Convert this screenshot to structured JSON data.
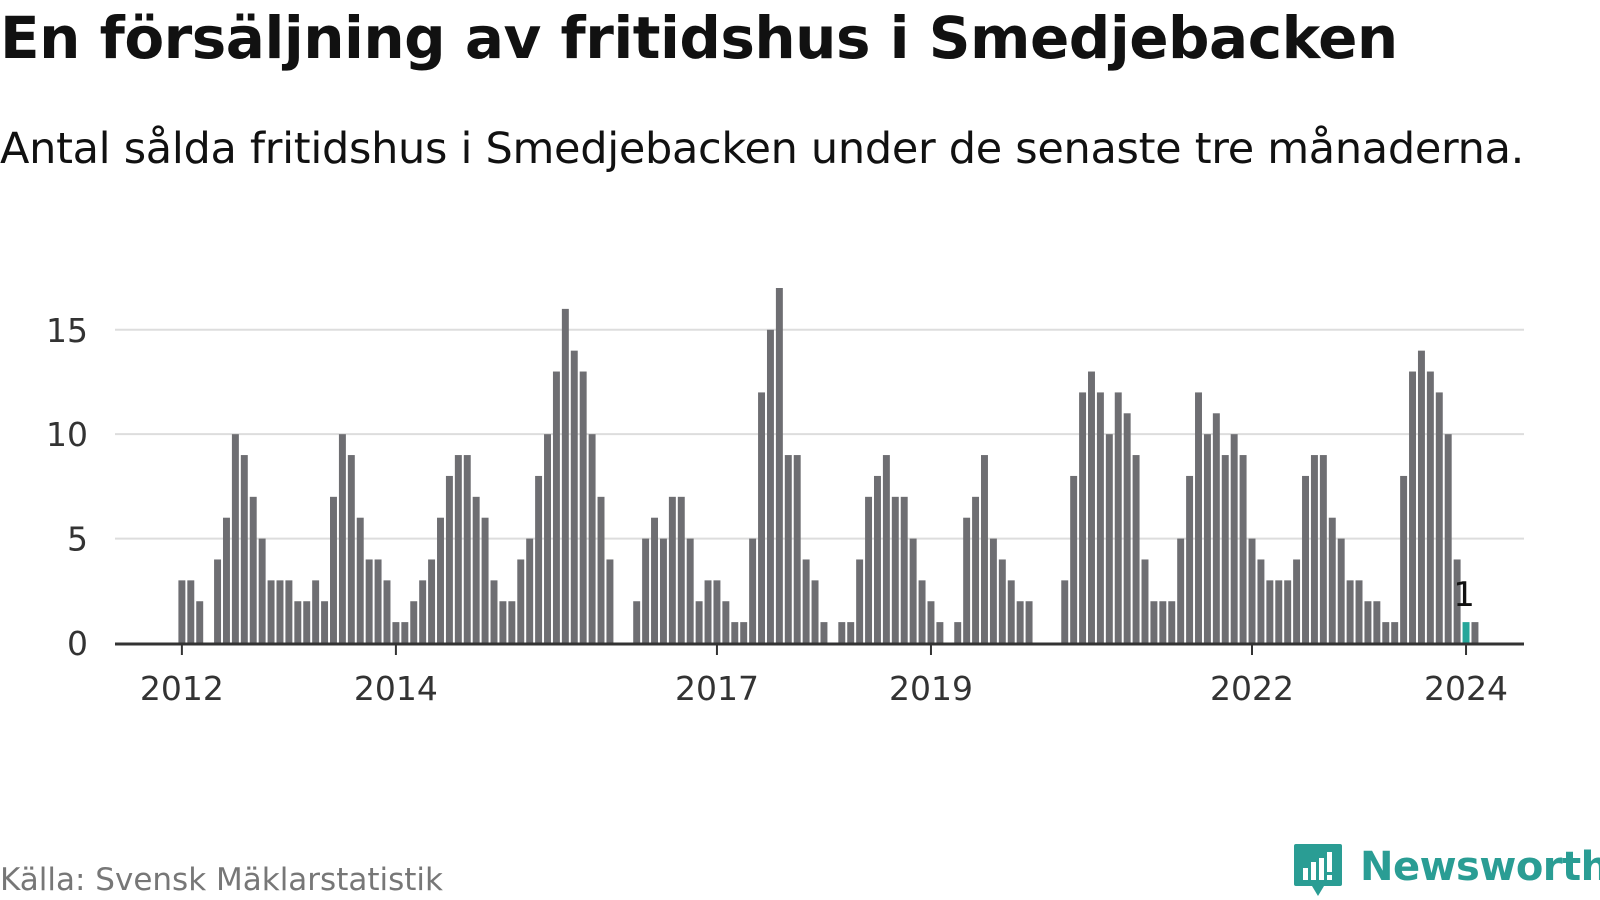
{
  "header": {
    "title": "En försäljning av fritidshus i Smedjebacken",
    "subtitle": "Antal sålda fritidshus i Smedjebacken under de senaste tre månaderna."
  },
  "footer": {
    "source": "Källa: Svensk Mäklarstatistik",
    "brand": "Newsworthy",
    "brand_icon": "newsworthy-logo-icon"
  },
  "colors": {
    "bar": "#6e6e72",
    "highlight": "#26a69a",
    "gridline": "#dddddd",
    "axis": "#333333",
    "brand": "#2a9d94"
  },
  "chart_data": {
    "type": "bar",
    "title": "En försäljning av fritidshus i Smedjebacken",
    "subtitle": "Antal sålda fritidshus i Smedjebacken under de senaste tre månaderna.",
    "xlabel": "",
    "ylabel": "",
    "ylim": [
      0,
      17
    ],
    "yticks": [
      0,
      5,
      10,
      15
    ],
    "x_start": "2011-06",
    "x_end": "2024-07",
    "xticks": [
      {
        "label": "2012",
        "month_index": 7
      },
      {
        "label": "2014",
        "month_index": 31
      },
      {
        "label": "2017",
        "month_index": 67
      },
      {
        "label": "2019",
        "month_index": 91
      },
      {
        "label": "2022",
        "month_index": 127
      },
      {
        "label": "2024",
        "month_index": 151
      }
    ],
    "series": [
      {
        "name": "Antal sålda fritidshus",
        "first_month": "2012-01",
        "values": [
          3,
          3,
          2,
          0,
          4,
          6,
          10,
          9,
          7,
          5,
          3,
          3,
          3,
          2,
          2,
          3,
          2,
          7,
          10,
          9,
          6,
          4,
          4,
          3,
          1,
          1,
          2,
          3,
          4,
          6,
          8,
          9,
          9,
          7,
          6,
          3,
          2,
          2,
          4,
          5,
          8,
          10,
          13,
          16,
          14,
          13,
          10,
          7,
          4,
          0,
          0,
          2,
          5,
          6,
          5,
          7,
          7,
          5,
          2,
          3,
          3,
          2,
          1,
          1,
          5,
          12,
          15,
          17,
          9,
          9,
          4,
          3,
          1,
          0,
          1,
          1,
          4,
          7,
          8,
          9,
          7,
          7,
          5,
          3,
          2,
          1,
          0,
          1,
          6,
          7,
          9,
          5,
          4,
          3,
          2,
          2,
          0,
          0,
          0,
          3,
          8,
          12,
          13,
          12,
          10,
          12,
          11,
          9,
          4,
          2,
          2,
          2,
          5,
          8,
          12,
          10,
          11,
          9,
          10,
          9,
          5,
          4,
          3,
          3,
          3,
          4,
          8,
          9,
          9,
          6,
          5,
          3,
          3,
          2,
          2,
          1,
          1,
          8,
          13,
          14,
          13,
          12,
          10,
          4,
          1,
          1
        ]
      }
    ],
    "highlight": {
      "month": "2024-01",
      "value": 1,
      "label": "1"
    },
    "grid": true,
    "legend": "none"
  }
}
